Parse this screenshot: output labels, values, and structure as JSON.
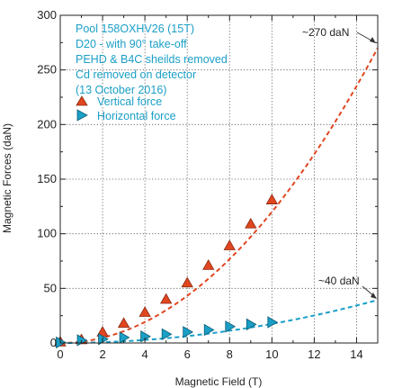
{
  "chart_data": {
    "type": "scatter",
    "xlabel": "Magnetic Field (T)",
    "ylabel": "Magnetic Forces (daN)",
    "xlim": [
      0,
      15
    ],
    "ylim": [
      0,
      300
    ],
    "x_ticks": [
      "0",
      "2",
      "4",
      "6",
      "8",
      "10",
      "12",
      "14"
    ],
    "y_ticks": [
      "0",
      "50",
      "100",
      "150",
      "200",
      "250",
      "300"
    ],
    "grid": true,
    "info_lines": [
      "Pool 158OXHV26 (15T)",
      "D20 - with 90° take-off",
      "PEHD & B4C sheilds removed",
      "Cd removed on detector",
      "(13 October 2016)"
    ],
    "series": [
      {
        "name": "Vertical force",
        "marker": "triangle-up",
        "color": "#e0461f",
        "x": [
          0,
          1,
          2,
          3,
          4,
          5,
          6,
          7,
          8,
          9,
          10
        ],
        "y": [
          1,
          3,
          10,
          18,
          28,
          40,
          55,
          71,
          89,
          109,
          131
        ]
      },
      {
        "name": "Horizontal force",
        "marker": "triangle-right",
        "color": "#1a9fc6",
        "x": [
          0,
          1,
          2,
          3,
          4,
          5,
          6,
          7,
          8,
          9,
          10
        ],
        "y": [
          0.5,
          2.5,
          3.5,
          5,
          6,
          8,
          10,
          12,
          15,
          17,
          19
        ]
      }
    ],
    "fits": [
      {
        "series": "Vertical force",
        "color": "#e0461f",
        "coef": 1.2,
        "end_label": "~270 daN"
      },
      {
        "series": "Horizontal force",
        "color": "#1a9fc6",
        "coef": 0.175,
        "end_label": "~40 daN"
      }
    ],
    "legend_position": "top-left"
  }
}
